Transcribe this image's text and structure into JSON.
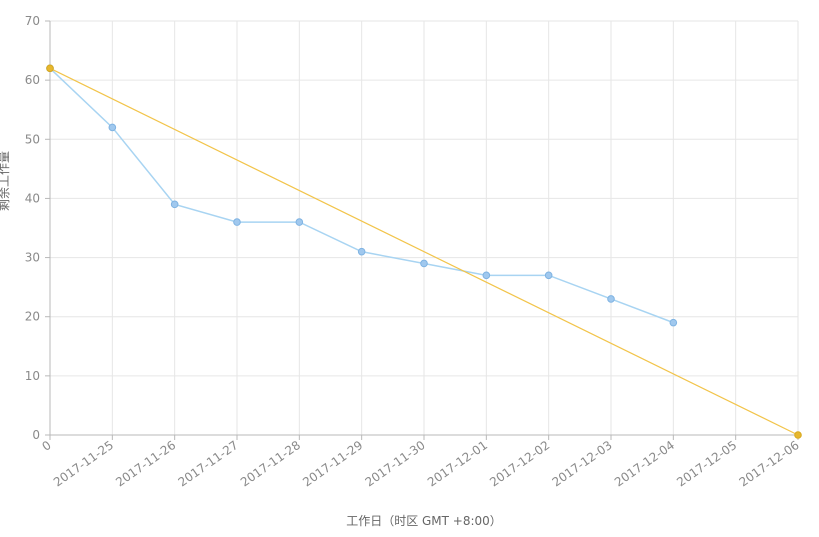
{
  "chart_data": {
    "type": "line",
    "xlabel": "工作日（时区 GMT +8:00）",
    "ylabel": "剩余工作量",
    "x": [
      "0",
      "2017-11-25",
      "2017-11-26",
      "2017-11-27",
      "2017-11-28",
      "2017-11-29",
      "2017-11-30",
      "2017-12-01",
      "2017-12-02",
      "2017-12-03",
      "2017-12-04",
      "2017-12-05",
      "2017-12-06"
    ],
    "ylim": [
      0,
      70
    ],
    "yticks": [
      "0",
      "10",
      "20",
      "30",
      "40",
      "50",
      "60",
      "70"
    ],
    "grid": true,
    "series": [
      {
        "values": [
          62,
          52,
          39,
          36,
          36,
          31,
          29,
          27,
          27,
          23,
          19,
          null,
          null
        ],
        "color": "#a8d4f2",
        "marker_color": "#a0c8ee",
        "marker_stroke": "#7fb3e2"
      },
      {
        "values": [
          62,
          null,
          null,
          null,
          null,
          null,
          null,
          null,
          null,
          null,
          null,
          null,
          0
        ],
        "color": "#f2c44a",
        "marker_color": "#e7b72e",
        "marker_stroke": "#d7a81f"
      }
    ],
    "colors": {
      "grid": "#e6e6e6",
      "axis": "#b8b8b8",
      "text": "#8a8a8a",
      "axis_title": "#666666"
    }
  }
}
